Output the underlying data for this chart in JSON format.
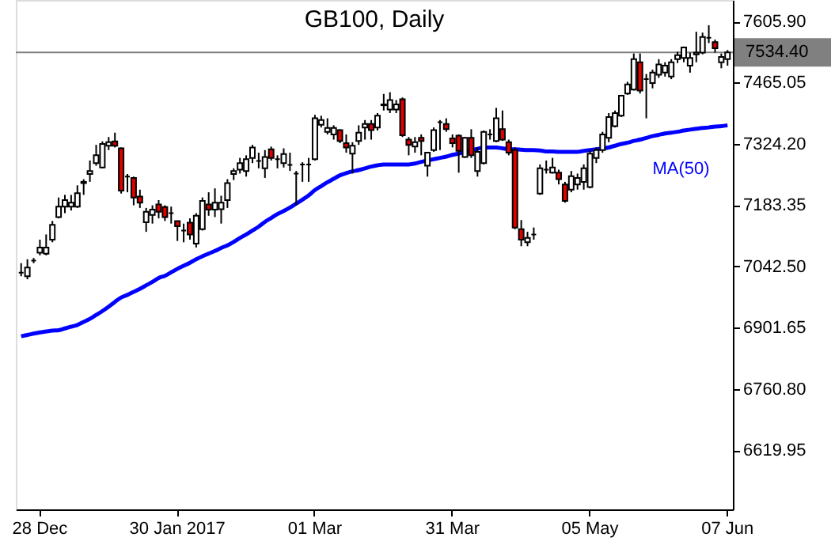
{
  "chart_data": {
    "type": "candlestick",
    "title": "GB100, Daily",
    "categories": [
      null,
      null,
      null,
      "28 Dec",
      null,
      null,
      null,
      null,
      null,
      null,
      null,
      null,
      null,
      null,
      null,
      null,
      null,
      null,
      null,
      null,
      null,
      null,
      null,
      null,
      null,
      "30 Jan 2017",
      null,
      null,
      null,
      null,
      null,
      null,
      null,
      null,
      null,
      null,
      null,
      null,
      null,
      null,
      null,
      null,
      null,
      null,
      null,
      null,
      null,
      "01 Mar",
      null,
      null,
      null,
      null,
      null,
      null,
      null,
      null,
      null,
      null,
      null,
      null,
      null,
      null,
      null,
      null,
      null,
      null,
      null,
      null,
      null,
      "31 Mar",
      null,
      null,
      null,
      null,
      null,
      null,
      null,
      null,
      null,
      null,
      null,
      null,
      null,
      null,
      null,
      null,
      null,
      null,
      null,
      null,
      null,
      "05 May",
      null,
      null,
      null,
      null,
      null,
      null,
      null,
      null,
      null,
      null,
      null,
      null,
      null,
      null,
      null,
      null,
      null,
      null,
      null,
      null,
      null,
      "07 Jun"
    ],
    "ohlc": [
      [
        7028,
        7050,
        7020,
        7028
      ],
      [
        7020,
        7059,
        7013,
        7040
      ],
      [
        7056,
        7062,
        7050,
        7056
      ],
      [
        7074,
        7104,
        7068,
        7086
      ],
      [
        7072,
        7116,
        7068,
        7086
      ],
      [
        7104,
        7147,
        7098,
        7138
      ],
      [
        7156,
        7201,
        7153,
        7180
      ],
      [
        7180,
        7207,
        7165,
        7195
      ],
      [
        7180,
        7207,
        7171,
        7189
      ],
      [
        7180,
        7229,
        7177,
        7211
      ],
      [
        7234,
        7243,
        7207,
        7237
      ],
      [
        7255,
        7286,
        7237,
        7262
      ],
      [
        7280,
        7322,
        7274,
        7298
      ],
      [
        7270,
        7330,
        7268,
        7324
      ],
      [
        7320,
        7340,
        7310,
        7328
      ],
      [
        7330,
        7350,
        7316,
        7320
      ],
      [
        7314,
        7316,
        7210,
        7217
      ],
      [
        7249,
        7255,
        7213,
        7249
      ],
      [
        7246,
        7249,
        7183,
        7201
      ],
      [
        7203,
        7219,
        7177,
        7189
      ],
      [
        7144,
        7177,
        7122,
        7168
      ],
      [
        7161,
        7183,
        7141,
        7173
      ],
      [
        7185,
        7195,
        7153,
        7168
      ],
      [
        7179,
        7183,
        7147,
        7156
      ],
      [
        7165,
        7180,
        7141,
        7165
      ],
      [
        7147,
        7147,
        7101,
        7135
      ],
      [
        7125,
        7141,
        7098,
        7125
      ],
      [
        7143,
        7153,
        7104,
        7116
      ],
      [
        7095,
        7165,
        7086,
        7159
      ],
      [
        7128,
        7201,
        7125,
        7193
      ],
      [
        7185,
        7213,
        7159,
        7173
      ],
      [
        7173,
        7222,
        7156,
        7189
      ],
      [
        7174,
        7205,
        7141,
        7189
      ],
      [
        7195,
        7243,
        7177,
        7234
      ],
      [
        7255,
        7268,
        7241,
        7262
      ],
      [
        7265,
        7292,
        7256,
        7280
      ],
      [
        7262,
        7298,
        7249,
        7289
      ],
      [
        7292,
        7322,
        7280,
        7316
      ],
      [
        7285,
        7304,
        7268,
        7285
      ],
      [
        7268,
        7310,
        7246,
        7294
      ],
      [
        7312,
        7318,
        7286,
        7292
      ],
      [
        7289,
        7298,
        7268,
        7289
      ],
      [
        7280,
        7314,
        7270,
        7301
      ],
      [
        7276,
        7304,
        7262,
        7276
      ],
      [
        7256,
        7262,
        7183,
        7256
      ],
      [
        7277,
        7282,
        7237,
        7277
      ],
      [
        7277,
        7292,
        7237,
        7277
      ],
      [
        7289,
        7391,
        7286,
        7383
      ],
      [
        7368,
        7389,
        7362,
        7379
      ],
      [
        7352,
        7383,
        7346,
        7361
      ],
      [
        7346,
        7367,
        7334,
        7361
      ],
      [
        7356,
        7358,
        7326,
        7331
      ],
      [
        7326,
        7346,
        7304,
        7316
      ],
      [
        7302,
        7328,
        7256,
        7320
      ],
      [
        7331,
        7367,
        7322,
        7350
      ],
      [
        7362,
        7379,
        7334,
        7370
      ],
      [
        7370,
        7379,
        7334,
        7356
      ],
      [
        7362,
        7395,
        7355,
        7389
      ],
      [
        7413,
        7439,
        7401,
        7415
      ],
      [
        7403,
        7443,
        7395,
        7425
      ],
      [
        7403,
        7425,
        7395,
        7415
      ],
      [
        7427,
        7431,
        7340,
        7344
      ],
      [
        7334,
        7340,
        7298,
        7322
      ],
      [
        7318,
        7340,
        7304,
        7328
      ],
      [
        7338,
        7346,
        7298,
        7331
      ],
      [
        7274,
        7306,
        7249,
        7304
      ],
      [
        7310,
        7362,
        7306,
        7356
      ],
      [
        7374,
        7379,
        7310,
        7374
      ],
      [
        7370,
        7383,
        7352,
        7358
      ],
      [
        7337,
        7346,
        7316,
        7326
      ],
      [
        7343,
        7346,
        7258,
        7308
      ],
      [
        7294,
        7340,
        7292,
        7338
      ],
      [
        7338,
        7358,
        7292,
        7298
      ],
      [
        7262,
        7316,
        7249,
        7306
      ],
      [
        7280,
        7355,
        7277,
        7352
      ],
      [
        7346,
        7358,
        7334,
        7346
      ],
      [
        7331,
        7407,
        7328,
        7383
      ],
      [
        7358,
        7401,
        7331,
        7334
      ],
      [
        7328,
        7334,
        7298,
        7304
      ],
      [
        7310,
        7316,
        7128,
        7132
      ],
      [
        7128,
        7149,
        7089,
        7104
      ],
      [
        7098,
        7122,
        7089,
        7108
      ],
      [
        7116,
        7132,
        7104,
        7116
      ],
      [
        7210,
        7277,
        7207,
        7268
      ],
      [
        7265,
        7286,
        7256,
        7265
      ],
      [
        7258,
        7292,
        7256,
        7270
      ],
      [
        7258,
        7265,
        7231,
        7243
      ],
      [
        7231,
        7237,
        7189,
        7193
      ],
      [
        7219,
        7262,
        7213,
        7250
      ],
      [
        7231,
        7256,
        7219,
        7246
      ],
      [
        7237,
        7277,
        7219,
        7268
      ],
      [
        7225,
        7310,
        7222,
        7302
      ],
      [
        7292,
        7316,
        7280,
        7310
      ],
      [
        7310,
        7352,
        7304,
        7346
      ],
      [
        7338,
        7395,
        7328,
        7386
      ],
      [
        7365,
        7401,
        7362,
        7395
      ],
      [
        7389,
        7437,
        7386,
        7435
      ],
      [
        7440,
        7467,
        7437,
        7461
      ],
      [
        7449,
        7532,
        7447,
        7519
      ],
      [
        7512,
        7532,
        7440,
        7447
      ],
      [
        7473,
        7485,
        7383,
        7473
      ],
      [
        7464,
        7495,
        7452,
        7488
      ],
      [
        7483,
        7519,
        7476,
        7507
      ],
      [
        7488,
        7512,
        7479,
        7504
      ],
      [
        7479,
        7519,
        7473,
        7512
      ],
      [
        7519,
        7536,
        7510,
        7528
      ],
      [
        7522,
        7548,
        7512,
        7546
      ],
      [
        7504,
        7534,
        7488,
        7522
      ],
      [
        7530,
        7582,
        7512,
        7534
      ],
      [
        7534,
        7580,
        7530,
        7570
      ],
      [
        7568,
        7597,
        7556,
        7568
      ],
      [
        7558,
        7564,
        7534,
        7544
      ],
      [
        7512,
        7532,
        7498,
        7524
      ],
      [
        7519,
        7540,
        7504,
        7534.4
      ]
    ],
    "colors": [
      "#000000",
      "#ffffff",
      "#000000",
      "#ffffff",
      "#ffffff",
      "#ffffff",
      "#ffffff",
      "#ffffff",
      "#ffffff",
      "#ffffff",
      "#ffffff",
      "#ffffff",
      "#ffffff",
      "#ffffff",
      "#ffffff",
      "#e00000",
      "#e00000",
      "#000000",
      "#e00000",
      "#e00000",
      "#ffffff",
      "#ffffff",
      "#e00000",
      "#e00000",
      "#000000",
      "#e00000",
      "#000000",
      "#e00000",
      "#ffffff",
      "#ffffff",
      "#e00000",
      "#ffffff",
      "#ffffff",
      "#ffffff",
      "#ffffff",
      "#ffffff",
      "#ffffff",
      "#ffffff",
      "#000000",
      "#ffffff",
      "#e00000",
      "#000000",
      "#ffffff",
      "#000000",
      "#000000",
      "#000000",
      "#000000",
      "#ffffff",
      "#ffffff",
      "#ffffff",
      "#ffffff",
      "#e00000",
      "#e00000",
      "#ffffff",
      "#ffffff",
      "#ffffff",
      "#e00000",
      "#ffffff",
      "#ffffff",
      "#ffffff",
      "#ffffff",
      "#e00000",
      "#e00000",
      "#ffffff",
      "#e00000",
      "#ffffff",
      "#ffffff",
      "#000000",
      "#e00000",
      "#e00000",
      "#e00000",
      "#ffffff",
      "#e00000",
      "#ffffff",
      "#ffffff",
      "#000000",
      "#ffffff",
      "#e00000",
      "#e00000",
      "#e00000",
      "#e00000",
      "#ffffff",
      "#000000",
      "#ffffff",
      "#000000",
      "#ffffff",
      "#e00000",
      "#e00000",
      "#ffffff",
      "#ffffff",
      "#ffffff",
      "#ffffff",
      "#ffffff",
      "#ffffff",
      "#ffffff",
      "#ffffff",
      "#ffffff",
      "#ffffff",
      "#ffffff",
      "#e00000",
      "#000000",
      "#ffffff",
      "#ffffff",
      "#ffffff",
      "#ffffff",
      "#ffffff",
      "#ffffff",
      "#ffffff",
      "#ffffff",
      "#ffffff",
      "#000000",
      "#e00000",
      "#ffffff",
      "#ffffff"
    ],
    "series": [
      {
        "name": "MA(50)",
        "type": "line",
        "color": "#0000ff",
        "values": [
          6882,
          6885,
          6888,
          6891,
          6893,
          6895,
          6896,
          6900,
          6904,
          6908,
          6915,
          6922,
          6931,
          6940,
          6950,
          6961,
          6971,
          6977,
          6984,
          6991,
          6999,
          7007,
          7016,
          7021,
          7029,
          7037,
          7044,
          7051,
          7059,
          7066,
          7072,
          7078,
          7085,
          7091,
          7099,
          7108,
          7116,
          7125,
          7134,
          7145,
          7154,
          7163,
          7170,
          7178,
          7187,
          7196,
          7206,
          7218,
          7227,
          7236,
          7244,
          7252,
          7257,
          7261,
          7264,
          7268,
          7272,
          7275,
          7277,
          7277,
          7277,
          7277,
          7277,
          7279,
          7283,
          7286,
          7289,
          7292,
          7295,
          7299,
          7302,
          7306,
          7310,
          7313,
          7316,
          7316,
          7316,
          7314,
          7312,
          7312,
          7311,
          7310,
          7310,
          7309,
          7307,
          7307,
          7306,
          7306,
          7306,
          7306,
          7308,
          7310,
          7312,
          7314,
          7316,
          7320,
          7324,
          7327,
          7331,
          7334,
          7338,
          7342,
          7345,
          7348,
          7350,
          7352,
          7355,
          7357,
          7359,
          7361,
          7362,
          7364,
          7365,
          7367
        ]
      }
    ],
    "ylim": [
      6484,
      7655
    ],
    "yticks": [
      {
        "value": 7605.9,
        "label": "7605.90"
      },
      {
        "value": 7465.05,
        "label": "7465.05"
      },
      {
        "value": 7324.2,
        "label": "7324.20"
      },
      {
        "value": 7183.35,
        "label": "7183.35"
      },
      {
        "value": 7042.5,
        "label": "7042.50"
      },
      {
        "value": 6901.65,
        "label": "6901.65"
      },
      {
        "value": 6760.8,
        "label": "6760.80"
      },
      {
        "value": 6619.95,
        "label": "6619.95"
      }
    ],
    "ref_lines": [
      {
        "axis": "y",
        "value": 7534.4,
        "label": "7534.40",
        "color": "#808080"
      }
    ]
  }
}
